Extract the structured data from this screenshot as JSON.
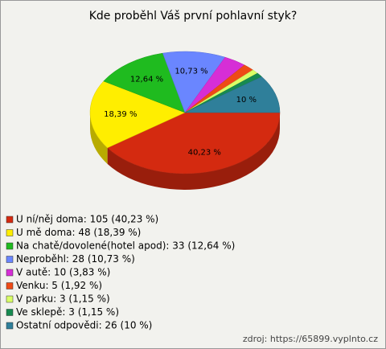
{
  "chart_data": {
    "type": "pie3d",
    "title": "Kde proběhl Váš první pohlavní styk?",
    "categories": [
      "U ní/něj doma: 105 (40,23 %)",
      "U mě doma: 48 (18,39 %)",
      "Na chatě/dovolené(hotel apod): 33 (12,64 %)",
      "Neproběhl: 28 (10,73 %)",
      "V autě: 10 (3,83 %)",
      "Venku: 5 (1,92 %)",
      "V parku: 3 (1,15 %)",
      "Ve sklepě: 3 (1,15 %)",
      "Ostatní odpovědi: 26 (10 %)"
    ],
    "values": [
      40.23,
      18.39,
      12.64,
      10.73,
      3.83,
      1.92,
      1.15,
      1.15,
      10
    ],
    "value_labels": [
      "40,23 %",
      "18,39 %",
      "12,64 %",
      "10,73 %",
      null,
      null,
      null,
      null,
      "10 %"
    ],
    "colors": [
      "#d42a10",
      "#ffee00",
      "#1fbb1f",
      "#6a86ff",
      "#d62ed6",
      "#ee4a16",
      "#d9ff66",
      "#168a50",
      "#2f7f9a"
    ],
    "source": "zdroj: https://65899.vyplnto.cz"
  }
}
